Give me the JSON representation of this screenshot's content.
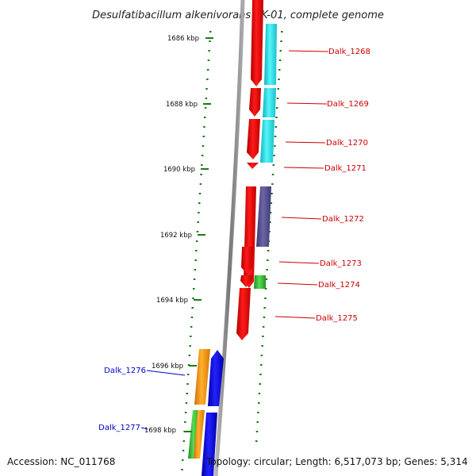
{
  "title": "Desulfatibacillum alkenivorans AK-01, complete genome",
  "accession": "Accession: NC_011768",
  "topology": "Topology: circular; Length: 6,517,073 bp; Genes: 5,314",
  "ticks": [
    {
      "label": "1686 kbp"
    },
    {
      "label": "1688 kbp"
    },
    {
      "label": "1690 kbp"
    },
    {
      "label": "1692 kbp"
    },
    {
      "label": "1694 kbp"
    },
    {
      "label": "1696 kbp"
    },
    {
      "label": "1698 kbp"
    }
  ],
  "genes_right": [
    {
      "label": "Dalk_1268"
    },
    {
      "label": "Dalk_1269"
    },
    {
      "label": "Dalk_1270"
    },
    {
      "label": "Dalk_1271"
    },
    {
      "label": "Dalk_1272"
    },
    {
      "label": "Dalk_1273"
    },
    {
      "label": "Dalk_1274"
    },
    {
      "label": "Dalk_1275"
    }
  ],
  "genes_left": [
    {
      "label": "Dalk_1276"
    },
    {
      "label": "Dalk_1277"
    }
  ],
  "colors": {
    "right_label": "#cc0000",
    "left_label": "#0000cc",
    "tick_green": "#1a7a1a",
    "backbone": "#888888",
    "red_gene": "#ee0000",
    "cyan_gene": "#22e0e8",
    "purple_gene": "#55508a",
    "green_gene": "#33bb33",
    "orange_gene": "#ff9900",
    "blue_gene": "#0000dd"
  }
}
